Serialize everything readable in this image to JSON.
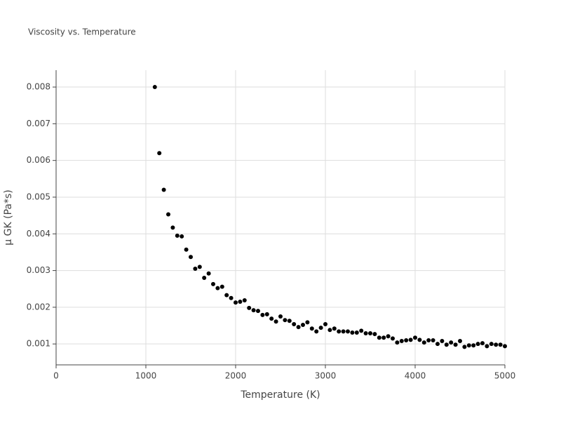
{
  "chart_data": {
    "type": "scatter",
    "title": "Viscosity vs. Temperature",
    "x_label": "Temperature (K)",
    "y_label": "μ GK (Pa*s)",
    "color": "#000000",
    "grid": true,
    "xlim": [
      0,
      5000
    ],
    "xticks": [
      0,
      1000,
      2000,
      3000,
      4000,
      5000
    ],
    "ylim": [
      0.00043,
      0.00846
    ],
    "yticks": [
      0.001,
      0.002,
      0.003,
      0.004,
      0.005,
      0.006,
      0.007,
      0.008
    ],
    "x": [
      1100,
      1150,
      1200,
      1250,
      1300,
      1350,
      1400,
      1450,
      1500,
      1550,
      1600,
      1650,
      1700,
      1750,
      1800,
      1850,
      1900,
      1950,
      2000,
      2050,
      2100,
      2150,
      2200,
      2250,
      2300,
      2350,
      2400,
      2450,
      2500,
      2550,
      2600,
      2650,
      2700,
      2750,
      2800,
      2850,
      2900,
      2950,
      3000,
      3050,
      3100,
      3150,
      3200,
      3250,
      3300,
      3350,
      3400,
      3450,
      3500,
      3550,
      3600,
      3650,
      3700,
      3750,
      3800,
      3850,
      3900,
      3950,
      4000,
      4050,
      4100,
      4150,
      4200,
      4250,
      4300,
      4350,
      4400,
      4450,
      4500,
      4550,
      4600,
      4650,
      4700,
      4750,
      4800,
      4850,
      4900,
      4950,
      5000
    ],
    "values": [
      0.008,
      0.0062,
      0.0052,
      0.00453,
      0.00417,
      0.00395,
      0.00393,
      0.00357,
      0.00337,
      0.00305,
      0.0031,
      0.0028,
      0.00292,
      0.00263,
      0.00252,
      0.00256,
      0.00233,
      0.00225,
      0.00213,
      0.00215,
      0.00219,
      0.00198,
      0.00192,
      0.0019,
      0.00179,
      0.00181,
      0.00169,
      0.00161,
      0.00175,
      0.00165,
      0.00163,
      0.00154,
      0.00146,
      0.00152,
      0.00159,
      0.00142,
      0.00134,
      0.00144,
      0.00154,
      0.00138,
      0.00142,
      0.00134,
      0.00134,
      0.00134,
      0.00131,
      0.00131,
      0.00136,
      0.00129,
      0.00129,
      0.00127,
      0.00117,
      0.00117,
      0.00121,
      0.00115,
      0.00104,
      0.00108,
      0.0011,
      0.00111,
      0.00117,
      0.00111,
      0.00104,
      0.0011,
      0.0011,
      0.001,
      0.00108,
      0.00098,
      0.00104,
      0.00098,
      0.00108,
      0.00092,
      0.00096,
      0.00096,
      0.001,
      0.00102,
      0.00094,
      0.001,
      0.00098,
      0.00098,
      0.00094
    ]
  }
}
